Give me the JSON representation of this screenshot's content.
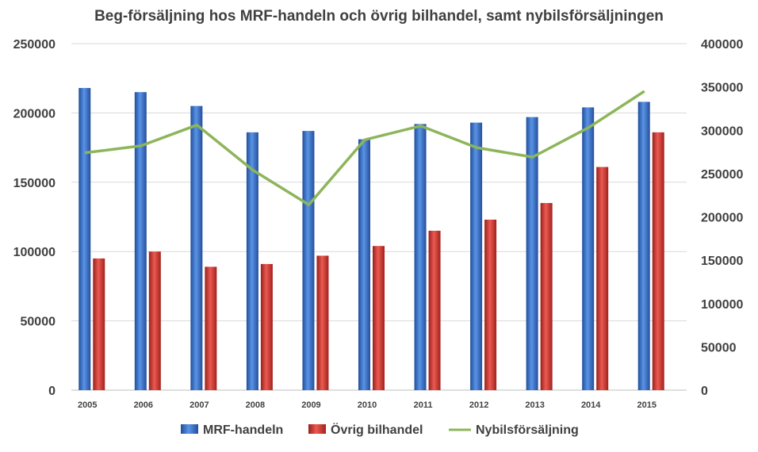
{
  "chart_data": {
    "type": "bar",
    "title": "Beg-försäljning hos MRF-handeln och övrig bilhandel, samt nybilsförsäljningen",
    "categories": [
      "2005",
      "2006",
      "2007",
      "2008",
      "2009",
      "2010",
      "2011",
      "2012",
      "2013",
      "2014",
      "2015"
    ],
    "series": [
      {
        "name": "MRF-handeln",
        "type": "bar",
        "axis": "left",
        "color": "#3b73c9",
        "values": [
          218000,
          215000,
          205000,
          186000,
          187000,
          181000,
          192000,
          193000,
          197000,
          204000,
          208000
        ]
      },
      {
        "name": "Övrig bilhandel",
        "type": "bar",
        "axis": "left",
        "color": "#d63b35",
        "values": [
          95000,
          100000,
          89000,
          91000,
          97000,
          104000,
          115000,
          123000,
          135000,
          161000,
          186000
        ]
      },
      {
        "name": "Nybilsförsäljning",
        "type": "line",
        "axis": "right",
        "color": "#8db55a",
        "values": [
          274000,
          282000,
          306000,
          254000,
          214000,
          289000,
          305000,
          280000,
          269000,
          303000,
          345000
        ]
      }
    ],
    "y_left": {
      "min": 0,
      "max": 250000,
      "ticks": [
        "0",
        "50000",
        "100000",
        "150000",
        "200000",
        "250000"
      ]
    },
    "y_right": {
      "min": 0,
      "max": 400000,
      "ticks": [
        "0",
        "50000",
        "100000",
        "150000",
        "200000",
        "250000",
        "300000",
        "350000",
        "400000"
      ]
    },
    "grid": true,
    "legend": "bottom"
  }
}
